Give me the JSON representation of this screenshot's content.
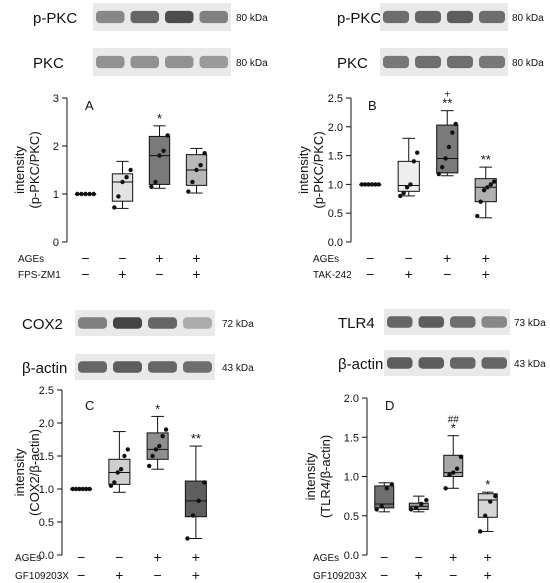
{
  "chart_data": [
    {
      "panel": "A",
      "type": "box",
      "ylabel": "intensity\n(p-PKC/PKC)",
      "ylim": [
        0,
        3
      ],
      "yticks": [
        0,
        1,
        2,
        3
      ],
      "blot": [
        {
          "label": "p-PKC",
          "kda": "80 kDa",
          "bands": [
            0.55,
            0.75,
            0.9,
            0.6
          ]
        },
        {
          "label": "PKC",
          "kda": "80 kDa",
          "bands": [
            0.5,
            0.5,
            0.5,
            0.45
          ]
        }
      ],
      "treatment_rows": [
        {
          "label": "AGEs",
          "signs": [
            "−",
            "−",
            "+",
            "+"
          ]
        },
        {
          "label": "FPS-ZM1",
          "signs": [
            "−",
            "+",
            "−",
            "+"
          ]
        }
      ],
      "groups": [
        {
          "fill": "#ffffff",
          "min": 1.0,
          "q1": 1.0,
          "median": 1.0,
          "q3": 1.0,
          "max": 1.0,
          "points": [
            1.0,
            1.0,
            1.0,
            1.0,
            1.0
          ],
          "sig": ""
        },
        {
          "fill": "#e3e3e3",
          "min": 0.7,
          "q1": 0.85,
          "median": 1.25,
          "q3": 1.42,
          "max": 1.68,
          "points": [
            0.72,
            0.95,
            1.25,
            1.35,
            1.5
          ],
          "sig": ""
        },
        {
          "fill": "#7a7a7a",
          "min": 1.12,
          "q1": 1.2,
          "median": 1.8,
          "q3": 2.2,
          "max": 2.42,
          "points": [
            1.15,
            1.25,
            1.8,
            1.9,
            2.22
          ],
          "sig": "*"
        },
        {
          "fill": "#b8b8b8",
          "min": 1.02,
          "q1": 1.18,
          "median": 1.5,
          "q3": 1.82,
          "max": 1.95,
          "points": [
            1.05,
            1.25,
            1.5,
            1.6,
            1.85
          ],
          "sig": ""
        }
      ]
    },
    {
      "panel": "B",
      "type": "box",
      "ylabel": "intensity\n(p-PKC/PKC)",
      "ylim": [
        0,
        2.5
      ],
      "yticks": [
        0.0,
        0.5,
        1.0,
        1.5,
        2.0,
        2.5
      ],
      "blot": [
        {
          "label": "p-PKC",
          "kda": "80 kDa",
          "bands": [
            0.7,
            0.75,
            0.8,
            0.7
          ]
        },
        {
          "label": "PKC",
          "kda": "80 kDa",
          "bands": [
            0.65,
            0.7,
            0.7,
            0.65
          ]
        }
      ],
      "treatment_rows": [
        {
          "label": "AGEs",
          "signs": [
            "−",
            "−",
            "+",
            "+"
          ]
        },
        {
          "label": "TAK-242",
          "signs": [
            "−",
            "+",
            "−",
            "+"
          ]
        }
      ],
      "groups": [
        {
          "fill": "#ffffff",
          "min": 1.0,
          "q1": 1.0,
          "median": 1.0,
          "q3": 1.0,
          "max": 1.0,
          "points": [
            1.0,
            1.0,
            1.0,
            1.0,
            1.0,
            1.0
          ],
          "sig": ""
        },
        {
          "fill": "#eeeeee",
          "min": 0.8,
          "q1": 0.88,
          "median": 0.98,
          "q3": 1.4,
          "max": 1.8,
          "points": [
            0.8,
            0.85,
            0.95,
            1.0,
            1.4,
            1.55
          ],
          "sig": ""
        },
        {
          "fill": "#7a7a7a",
          "min": 1.15,
          "q1": 1.2,
          "median": 1.45,
          "q3": 2.03,
          "max": 2.28,
          "points": [
            1.18,
            1.3,
            1.45,
            1.65,
            1.9,
            2.05
          ],
          "sig": "**",
          "sig2": "+"
        },
        {
          "fill": "#b0b0b0",
          "min": 0.42,
          "q1": 0.7,
          "median": 0.95,
          "q3": 1.1,
          "max": 1.3,
          "points": [
            0.45,
            0.7,
            0.9,
            0.95,
            1.0,
            1.05
          ],
          "sig": "**"
        }
      ]
    },
    {
      "panel": "C",
      "type": "box",
      "ylabel": "intensity\n(COX2/β-actin)",
      "ylim": [
        0,
        2.5
      ],
      "yticks": [
        0.0,
        0.5,
        1.0,
        1.5,
        2.0,
        2.5
      ],
      "blot": [
        {
          "label": "COX2",
          "kda": "72 kDa",
          "bands": [
            0.6,
            0.95,
            0.75,
            0.35
          ]
        },
        {
          "label": "β-actin",
          "kda": "43 kDa",
          "bands": [
            0.75,
            0.8,
            0.75,
            0.7
          ]
        }
      ],
      "treatment_rows": [
        {
          "label": "AGEs",
          "signs": [
            "−",
            "−",
            "+",
            "+"
          ]
        },
        {
          "label": "GF109203X",
          "signs": [
            "−",
            "+",
            "−",
            "+"
          ]
        }
      ],
      "groups": [
        {
          "fill": "#ffffff",
          "min": 1.0,
          "q1": 1.0,
          "median": 1.0,
          "q3": 1.0,
          "max": 1.0,
          "points": [
            1.0,
            1.0,
            1.0,
            1.0,
            1.0,
            1.0
          ],
          "sig": ""
        },
        {
          "fill": "#cfcfcf",
          "min": 0.95,
          "q1": 1.07,
          "median": 1.25,
          "q3": 1.45,
          "max": 1.87,
          "points": [
            1.05,
            1.1,
            1.25,
            1.3,
            1.5,
            1.6
          ],
          "sig": ""
        },
        {
          "fill": "#8f8f8f",
          "min": 1.3,
          "q1": 1.45,
          "median": 1.6,
          "q3": 1.85,
          "max": 2.1,
          "points": [
            1.35,
            1.5,
            1.6,
            1.65,
            1.8,
            1.9
          ],
          "sig": "*"
        },
        {
          "fill": "#5e5e5e",
          "min": 0.25,
          "q1": 0.58,
          "median": 0.82,
          "q3": 1.12,
          "max": 1.65,
          "points": [
            0.25,
            0.6,
            0.82,
            1.1
          ],
          "sig": "**"
        }
      ]
    },
    {
      "panel": "D",
      "type": "box",
      "ylabel": "intensity\n(TLR4/β-actin)",
      "ylim": [
        0,
        2.0
      ],
      "yticks": [
        0.0,
        0.5,
        1.0,
        1.5,
        2.0
      ],
      "blot": [
        {
          "label": "TLR4",
          "kda": "73 kDa",
          "bands": [
            0.75,
            0.8,
            0.7,
            0.55
          ]
        },
        {
          "label": "β-actin",
          "kda": "43 kDa",
          "bands": [
            0.8,
            0.8,
            0.75,
            0.75
          ]
        }
      ],
      "treatment_rows": [
        {
          "label": "AGEs",
          "signs": [
            "−",
            "−",
            "+",
            "+"
          ]
        },
        {
          "label": "GF109203X",
          "signs": [
            "−",
            "+",
            "−",
            "+"
          ]
        }
      ],
      "groups": [
        {
          "fill": "#707070",
          "min": 0.55,
          "q1": 0.6,
          "median": 0.65,
          "q3": 0.88,
          "max": 0.92,
          "points": [
            0.58,
            0.62,
            0.85,
            0.9
          ],
          "sig": ""
        },
        {
          "fill": "#9a9a9a",
          "min": 0.55,
          "q1": 0.58,
          "median": 0.62,
          "q3": 0.66,
          "max": 0.75,
          "points": [
            0.58,
            0.6,
            0.65,
            0.7
          ],
          "sig": ""
        },
        {
          "fill": "#a8a8a8",
          "min": 0.85,
          "q1": 1.0,
          "median": 1.05,
          "q3": 1.27,
          "max": 1.52,
          "points": [
            0.85,
            1.02,
            1.05,
            1.1,
            1.25
          ],
          "sig": "*",
          "sig2": "##"
        },
        {
          "fill": "#d6d6d6",
          "min": 0.3,
          "q1": 0.48,
          "median": 0.7,
          "q3": 0.78,
          "max": 0.8,
          "points": [
            0.3,
            0.5,
            0.68,
            0.75
          ],
          "sig": "*"
        }
      ]
    }
  ]
}
